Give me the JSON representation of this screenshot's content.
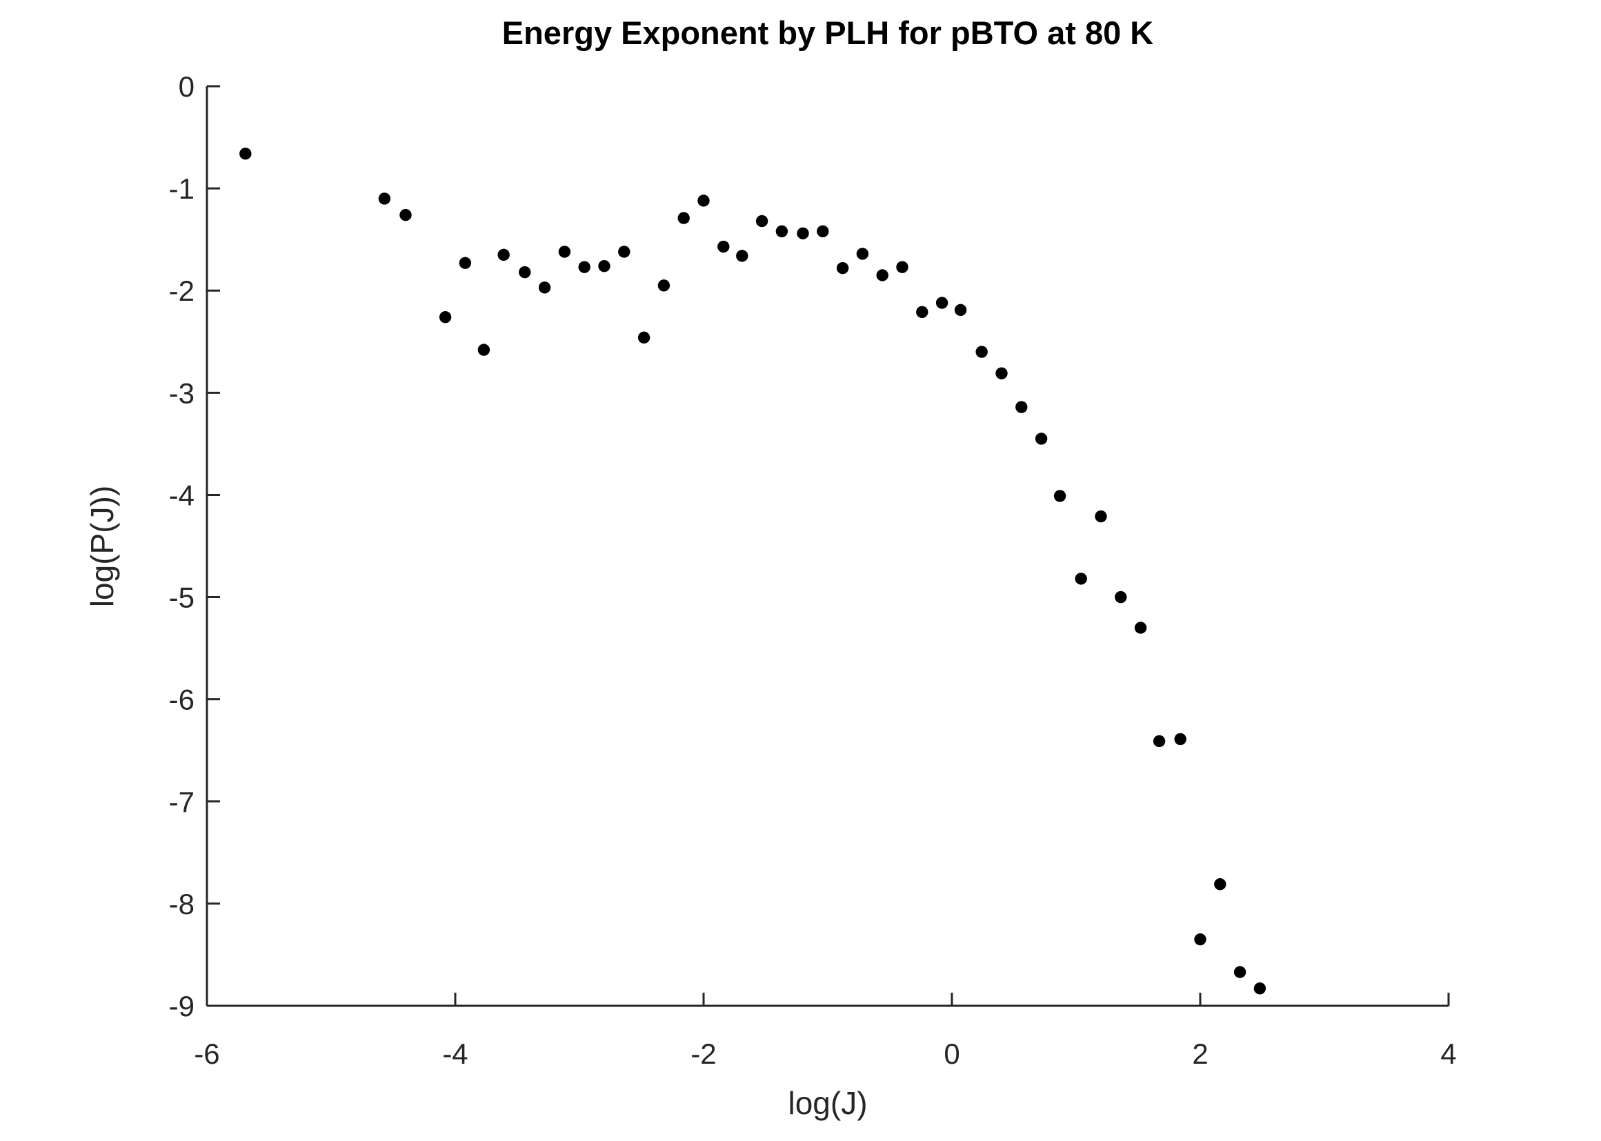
{
  "chart_data": {
    "type": "scatter",
    "title": "Energy Exponent by PLH for pBTO at 80 K",
    "xlabel": "log(J)",
    "ylabel": "log(P(J))",
    "xlim": [
      -6,
      4
    ],
    "ylim": [
      -9,
      0
    ],
    "xticks": [
      -6,
      -4,
      -2,
      0,
      2,
      4
    ],
    "yticks": [
      0,
      -1,
      -2,
      -3,
      -4,
      -5,
      -6,
      -7,
      -8,
      -9
    ],
    "grid": false,
    "legend": null,
    "marker": {
      "shape": "filled-circle",
      "color": "#000000"
    },
    "axis_color": "#262626",
    "background_color": "#ffffff",
    "x": [
      -5.69,
      -4.57,
      -4.4,
      -4.08,
      -3.92,
      -3.77,
      -3.61,
      -3.44,
      -3.28,
      -3.12,
      -2.96,
      -2.8,
      -2.64,
      -2.48,
      -2.32,
      -2.16,
      -2.0,
      -1.84,
      -1.69,
      -1.53,
      -1.37,
      -1.2,
      -1.04,
      -0.88,
      -0.72,
      -0.56,
      -0.4,
      -0.24,
      -0.08,
      0.07,
      0.24,
      0.4,
      0.56,
      0.72,
      0.87,
      1.04,
      1.2,
      1.36,
      1.52,
      1.67,
      1.84,
      2.0,
      2.16,
      2.32,
      2.48
    ],
    "y": [
      -0.66,
      -1.1,
      -1.26,
      -2.26,
      -1.73,
      -2.58,
      -1.65,
      -1.82,
      -1.97,
      -1.62,
      -1.77,
      -1.76,
      -1.62,
      -2.46,
      -1.95,
      -1.29,
      -1.12,
      -1.57,
      -1.66,
      -1.32,
      -1.42,
      -1.44,
      -1.42,
      -1.78,
      -1.64,
      -1.85,
      -1.77,
      -2.21,
      -2.12,
      -2.19,
      -2.6,
      -2.81,
      -3.14,
      -3.45,
      -4.01,
      -4.82,
      -4.21,
      -5.0,
      -5.3,
      -6.41,
      -6.39,
      -8.35,
      -7.81,
      -8.67,
      -8.83
    ]
  }
}
